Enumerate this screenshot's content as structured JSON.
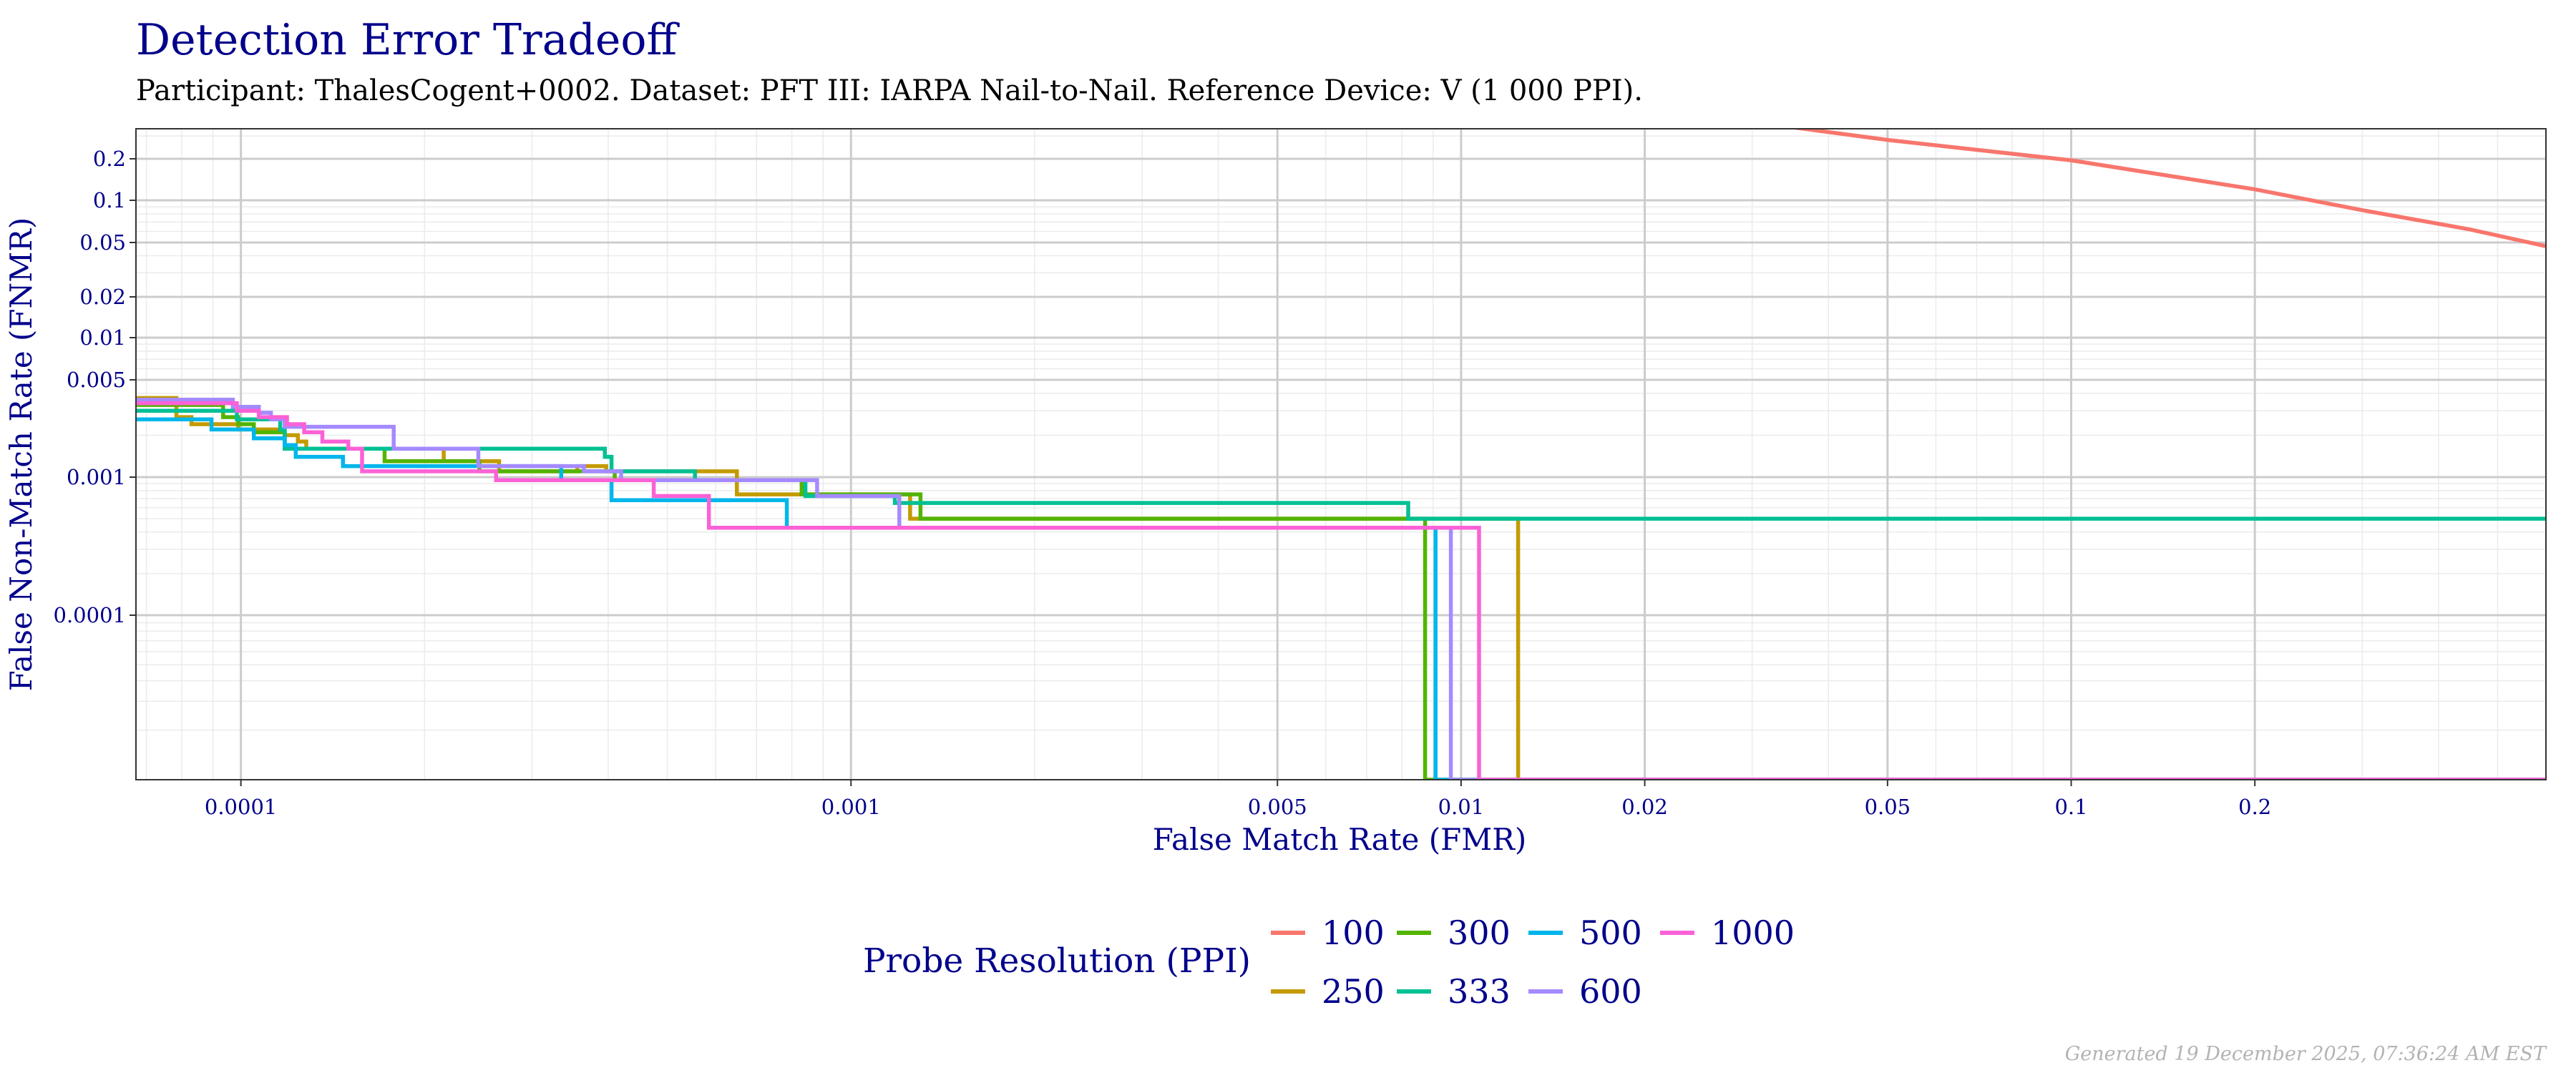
{
  "chart_data": {
    "type": "line",
    "title": "Detection Error Tradeoff",
    "subtitle": "Participant: ThalesCogent+0002. Dataset: PFT III: IARPA Nail-to-Nail. Reference Device: V (1 000 PPI).",
    "xlabel": "False Match Rate (FMR)",
    "ylabel": "False Non-Match Rate (FNMR)",
    "x_scale": "log",
    "y_scale": "log",
    "xlim": [
      6.73e-05,
      0.6
    ],
    "x_ticks": [
      {
        "value": 0.0001,
        "label": "0.0001"
      },
      {
        "value": 0.001,
        "label": "0.001"
      },
      {
        "value": 0.005,
        "label": "0.005"
      },
      {
        "value": 0.01,
        "label": "0.01"
      },
      {
        "value": 0.02,
        "label": "0.02"
      },
      {
        "value": 0.05,
        "label": "0.05"
      },
      {
        "value": 0.1,
        "label": "0.1"
      },
      {
        "value": 0.2,
        "label": "0.2"
      }
    ],
    "y_ticks": [
      {
        "value": 0.0001,
        "label": "0.0001"
      },
      {
        "value": 0.001,
        "label": "0.001"
      },
      {
        "value": 0.005,
        "label": "0.005"
      },
      {
        "value": 0.01,
        "label": "0.01"
      },
      {
        "value": 0.02,
        "label": "0.02"
      },
      {
        "value": 0.05,
        "label": "0.05"
      },
      {
        "value": 0.1,
        "label": "0.1"
      },
      {
        "value": 0.2,
        "label": "0.2"
      }
    ],
    "grid": true,
    "legend_title": "Probe Resolution (PPI)",
    "legend_position": "bottom",
    "series": [
      {
        "name": "100",
        "color": "#F8766D",
        "points": [
          [
            0.035,
            0.35
          ],
          [
            0.05,
            0.28
          ],
          [
            0.1,
            0.195
          ],
          [
            0.2,
            0.12
          ],
          [
            0.3,
            0.085
          ],
          [
            0.45,
            0.062
          ],
          [
            0.6,
            0.047
          ]
        ]
      },
      {
        "name": "250",
        "color": "#C49A00",
        "points": [
          [
            6.73e-05,
            0.0037
          ],
          [
            7.84e-05,
            0.0037
          ],
          [
            7.84e-05,
            0.0027
          ],
          [
            8.3e-05,
            0.0027
          ],
          [
            8.3e-05,
            0.0024
          ],
          [
            9.9e-05,
            0.0024
          ],
          [
            9.9e-05,
            0.0022
          ],
          [
            0.000118,
            0.0022
          ],
          [
            0.000118,
            0.002
          ],
          [
            0.000124,
            0.002
          ],
          [
            0.000124,
            0.0018
          ],
          [
            0.000128,
            0.0018
          ],
          [
            0.000128,
            0.0016
          ],
          [
            0.000215,
            0.0016
          ],
          [
            0.000215,
            0.0013
          ],
          [
            0.000265,
            0.0013
          ],
          [
            0.000265,
            0.0011
          ],
          [
            0.000356,
            0.0011
          ],
          [
            0.000356,
            0.0012
          ],
          [
            0.000397,
            0.0012
          ],
          [
            0.000397,
            0.0011
          ],
          [
            0.00065,
            0.0011
          ],
          [
            0.00065,
            0.00075
          ],
          [
            0.00125,
            0.00075
          ],
          [
            0.00125,
            0.0005
          ],
          [
            0.0124,
            0.0005
          ],
          [
            0.0124,
            1e-05
          ],
          [
            0.6,
            1e-05
          ]
        ]
      },
      {
        "name": "300",
        "color": "#53B400",
        "points": [
          [
            6.73e-05,
            0.0033
          ],
          [
            9.35e-05,
            0.0033
          ],
          [
            9.35e-05,
            0.0027
          ],
          [
            9.9e-05,
            0.0027
          ],
          [
            9.9e-05,
            0.0024
          ],
          [
            0.000105,
            0.0024
          ],
          [
            0.000105,
            0.0021
          ],
          [
            0.000118,
            0.0021
          ],
          [
            0.000118,
            0.0016
          ],
          [
            0.000172,
            0.0016
          ],
          [
            0.000172,
            0.0013
          ],
          [
            0.000246,
            0.0013
          ],
          [
            0.000246,
            0.0011
          ],
          [
            0.00041,
            0.0011
          ],
          [
            0.00041,
            0.00095
          ],
          [
            0.00083,
            0.00095
          ],
          [
            0.00083,
            0.00075
          ],
          [
            0.0013,
            0.00075
          ],
          [
            0.0013,
            0.0005
          ],
          [
            0.00873,
            0.0005
          ],
          [
            0.00873,
            1e-05
          ],
          [
            0.6,
            1e-05
          ]
        ]
      },
      {
        "name": "333",
        "color": "#00C094",
        "points": [
          [
            6.73e-05,
            0.003
          ],
          [
            9.85e-05,
            0.003
          ],
          [
            9.85e-05,
            0.0026
          ],
          [
            0.000116,
            0.0026
          ],
          [
            0.000116,
            0.0022
          ],
          [
            0.000118,
            0.0022
          ],
          [
            0.000118,
            0.0016
          ],
          [
            0.000395,
            0.0016
          ],
          [
            0.000395,
            0.0014
          ],
          [
            0.000405,
            0.0014
          ],
          [
            0.000405,
            0.0011
          ],
          [
            0.000555,
            0.0011
          ],
          [
            0.000555,
            0.00095
          ],
          [
            0.000842,
            0.00095
          ],
          [
            0.000842,
            0.00073
          ],
          [
            0.00118,
            0.00073
          ],
          [
            0.00118,
            0.00065
          ],
          [
            0.00819,
            0.00065
          ],
          [
            0.00819,
            0.0005
          ],
          [
            0.6,
            0.0005
          ]
        ]
      },
      {
        "name": "500",
        "color": "#00B6EB",
        "points": [
          [
            6.73e-05,
            0.0026
          ],
          [
            8.95e-05,
            0.0026
          ],
          [
            8.95e-05,
            0.0022
          ],
          [
            0.000105,
            0.0022
          ],
          [
            0.000105,
            0.0019
          ],
          [
            0.000118,
            0.0019
          ],
          [
            0.000118,
            0.0017
          ],
          [
            0.000123,
            0.0017
          ],
          [
            0.000123,
            0.0014
          ],
          [
            0.000147,
            0.0014
          ],
          [
            0.000147,
            0.0012
          ],
          [
            0.000335,
            0.0012
          ],
          [
            0.000335,
            0.00095
          ],
          [
            0.000405,
            0.00095
          ],
          [
            0.000405,
            0.00068
          ],
          [
            0.000785,
            0.00068
          ],
          [
            0.000785,
            0.00043
          ],
          [
            0.00908,
            0.00043
          ],
          [
            0.00908,
            1e-05
          ],
          [
            0.6,
            1e-05
          ]
        ]
      },
      {
        "name": "600",
        "color": "#A58AFF",
        "points": [
          [
            6.73e-05,
            0.0036
          ],
          [
            9.7e-05,
            0.0036
          ],
          [
            9.7e-05,
            0.0032
          ],
          [
            0.000107,
            0.0032
          ],
          [
            0.000107,
            0.0029
          ],
          [
            0.000112,
            0.0029
          ],
          [
            0.000112,
            0.0026
          ],
          [
            0.000118,
            0.0026
          ],
          [
            0.000118,
            0.0023
          ],
          [
            0.000178,
            0.0023
          ],
          [
            0.000178,
            0.0016
          ],
          [
            0.000245,
            0.0016
          ],
          [
            0.000245,
            0.0012
          ],
          [
            0.000365,
            0.0012
          ],
          [
            0.000365,
            0.0011
          ],
          [
            0.00042,
            0.0011
          ],
          [
            0.00042,
            0.00095
          ],
          [
            0.00088,
            0.00095
          ],
          [
            0.00088,
            0.00073
          ],
          [
            0.0012,
            0.00073
          ],
          [
            0.0012,
            0.00043
          ],
          [
            0.00962,
            0.00043
          ],
          [
            0.00962,
            1e-05
          ],
          [
            0.6,
            1e-05
          ]
        ]
      },
      {
        "name": "1000",
        "color": "#FB61D7",
        "points": [
          [
            6.73e-05,
            0.0034
          ],
          [
            9.85e-05,
            0.0034
          ],
          [
            9.85e-05,
            0.003
          ],
          [
            0.000107,
            0.003
          ],
          [
            0.000107,
            0.0027
          ],
          [
            0.000119,
            0.0027
          ],
          [
            0.000119,
            0.0024
          ],
          [
            0.000127,
            0.0024
          ],
          [
            0.000127,
            0.0021
          ],
          [
            0.000136,
            0.0021
          ],
          [
            0.000136,
            0.0018
          ],
          [
            0.00015,
            0.0018
          ],
          [
            0.00015,
            0.0016
          ],
          [
            0.000158,
            0.0016
          ],
          [
            0.000158,
            0.0011
          ],
          [
            0.000262,
            0.0011
          ],
          [
            0.000262,
            0.00095
          ],
          [
            0.000475,
            0.00095
          ],
          [
            0.000475,
            0.00073
          ],
          [
            0.000585,
            0.00073
          ],
          [
            0.000585,
            0.00043
          ],
          [
            0.0107,
            0.00043
          ],
          [
            0.0107,
            1e-05
          ],
          [
            0.6,
            1e-05
          ]
        ]
      }
    ]
  },
  "footer": "Generated 19 December 2025, 07:36:24 AM EST"
}
